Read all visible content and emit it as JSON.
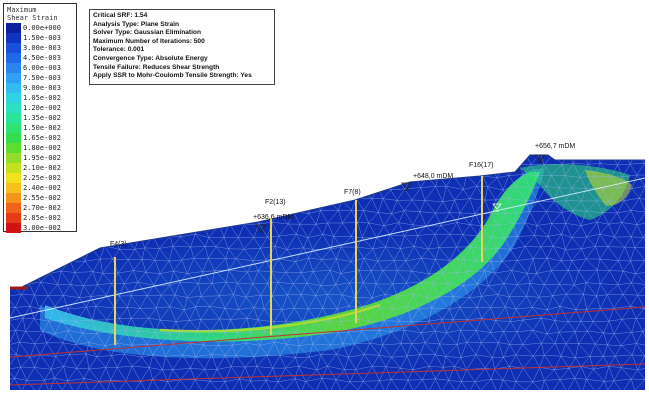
{
  "legend": {
    "title_lines": [
      "Maximum",
      "Shear Strain"
    ],
    "items": [
      {
        "label": "0.00e+000",
        "color": "#0c1f9e"
      },
      {
        "label": "1.50e-003",
        "color": "#0f34c4"
      },
      {
        "label": "3.00e-003",
        "color": "#1850dd"
      },
      {
        "label": "4.50e-003",
        "color": "#1f6ae8"
      },
      {
        "label": "6.00e-003",
        "color": "#2a85ef"
      },
      {
        "label": "7.50e-003",
        "color": "#2fa0f3"
      },
      {
        "label": "9.00e-003",
        "color": "#33bcf2"
      },
      {
        "label": "1.05e-002",
        "color": "#2fd4e2"
      },
      {
        "label": "1.20e-002",
        "color": "#2ae2c2"
      },
      {
        "label": "1.35e-002",
        "color": "#27e69a"
      },
      {
        "label": "1.50e-002",
        "color": "#2ee274"
      },
      {
        "label": "1.65e-002",
        "color": "#33dd4e"
      },
      {
        "label": "1.80e-002",
        "color": "#5fdc30"
      },
      {
        "label": "1.95e-002",
        "color": "#92dd27"
      },
      {
        "label": "2.10e-002",
        "color": "#c5e021"
      },
      {
        "label": "2.25e-002",
        "color": "#f1e21d"
      },
      {
        "label": "2.40e-002",
        "color": "#f7c01c"
      },
      {
        "label": "2.55e-002",
        "color": "#f5951a"
      },
      {
        "label": "2.70e-002",
        "color": "#ef6418"
      },
      {
        "label": "2.85e-002",
        "color": "#e63916"
      },
      {
        "label": "3.00e-002",
        "color": "#d01212"
      }
    ]
  },
  "info": {
    "lines": [
      "Critical SRF: 1.54",
      "Analysis Type: Plane Strain",
      "Solver Type: Gaussian Elimination",
      "Maximum Number of Iterations: 500",
      "Tolerance: 0.001",
      "Convergence Type: Absolute Energy",
      "Tensile Failure: Reduces Shear Strength",
      "Apply SSR to Mohr-Coulomb Tensile Strength: Yes"
    ]
  },
  "boreholes": [
    {
      "label": "F4(3)"
    },
    {
      "label": "F2(13)"
    },
    {
      "label": "F7(8)"
    },
    {
      "label": "F16(17)"
    }
  ],
  "water_levels": [
    {
      "label": "+636,6 mDM"
    },
    {
      "label": "+648,0 mDM"
    },
    {
      "label": "+656,7 mDM"
    }
  ],
  "colors": {
    "mesh_base": "#0e2fb4",
    "mesh_line": "#9fb4f2",
    "shear_band": "#2ee274",
    "shear_core": "#c5e021",
    "layer_line": "#c03030",
    "borehole": "#e8d35a",
    "phreatic": "#d8f0ff"
  }
}
